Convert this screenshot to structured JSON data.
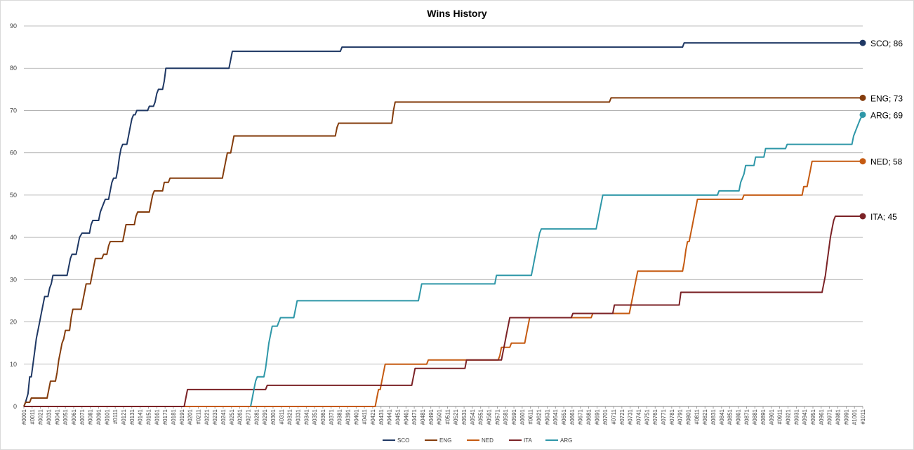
{
  "chart_data": {
    "type": "line",
    "title": "Wins History",
    "xlabel": "",
    "ylabel": "",
    "ylim": [
      0,
      90
    ],
    "yticks": [
      0,
      10,
      20,
      30,
      40,
      50,
      60,
      70,
      80,
      90
    ],
    "xlim": [
      1,
      1011
    ],
    "x_tick_labels": [
      "#0001",
      "#0011",
      "#0021",
      "#0031",
      "#0041",
      "#0051",
      "#0061",
      "#0071",
      "#0081",
      "#0091",
      "#0101",
      "#0111",
      "#0121",
      "#0131",
      "#0141",
      "#0151",
      "#0161",
      "#0171",
      "#0181",
      "#0191",
      "#0201",
      "#0211",
      "#0221",
      "#0231",
      "#0241",
      "#0251",
      "#0261",
      "#0271",
      "#0281",
      "#0291",
      "#0301",
      "#0311",
      "#0321",
      "#0331",
      "#0341",
      "#0351",
      "#0361",
      "#0371",
      "#0381",
      "#0391",
      "#0401",
      "#0411",
      "#0421",
      "#0431",
      "#0441",
      "#0451",
      "#0461",
      "#0471",
      "#0481",
      "#0491",
      "#0501",
      "#0511",
      "#0521",
      "#0531",
      "#0541",
      "#0551",
      "#0561",
      "#0571",
      "#0581",
      "#0591",
      "#0601",
      "#0611",
      "#0621",
      "#0631",
      "#0641",
      "#0651",
      "#0661",
      "#0671",
      "#0681",
      "#0691",
      "#0701",
      "#0711",
      "#0721",
      "#0731",
      "#0741",
      "#0751",
      "#0761",
      "#0771",
      "#0781",
      "#0791",
      "#0801",
      "#0811",
      "#0821",
      "#0831",
      "#0841",
      "#0851",
      "#0861",
      "#0871",
      "#0881",
      "#0891",
      "#0901",
      "#0911",
      "#0921",
      "#0931",
      "#0941",
      "#0951",
      "#0961",
      "#0971",
      "#0981",
      "#0991",
      "#1001",
      "#1011"
    ],
    "grid": true,
    "legend_position": "bottom",
    "series": [
      {
        "name": "SCO",
        "color": "#1f3864",
        "end_label": "SCO; 86",
        "points": [
          [
            1,
            0
          ],
          [
            3,
            1
          ],
          [
            6,
            3
          ],
          [
            8,
            7
          ],
          [
            10,
            7
          ],
          [
            12,
            10
          ],
          [
            14,
            13
          ],
          [
            16,
            16
          ],
          [
            18,
            18
          ],
          [
            20,
            20
          ],
          [
            22,
            22
          ],
          [
            24,
            24
          ],
          [
            26,
            26
          ],
          [
            30,
            26
          ],
          [
            32,
            28
          ],
          [
            34,
            29
          ],
          [
            36,
            31
          ],
          [
            53,
            31
          ],
          [
            55,
            33
          ],
          [
            57,
            35
          ],
          [
            59,
            36
          ],
          [
            64,
            36
          ],
          [
            66,
            38
          ],
          [
            68,
            40
          ],
          [
            71,
            41
          ],
          [
            80,
            41
          ],
          [
            82,
            43
          ],
          [
            84,
            44
          ],
          [
            91,
            44
          ],
          [
            93,
            46
          ],
          [
            95,
            47
          ],
          [
            97,
            48
          ],
          [
            99,
            49
          ],
          [
            103,
            49
          ],
          [
            105,
            51
          ],
          [
            107,
            53
          ],
          [
            109,
            54
          ],
          [
            112,
            54
          ],
          [
            114,
            56
          ],
          [
            116,
            59
          ],
          [
            118,
            61
          ],
          [
            120,
            62
          ],
          [
            125,
            62
          ],
          [
            127,
            64
          ],
          [
            129,
            66
          ],
          [
            131,
            68
          ],
          [
            133,
            69
          ],
          [
            135,
            69
          ],
          [
            137,
            70
          ],
          [
            150,
            70
          ],
          [
            152,
            71
          ],
          [
            157,
            71
          ],
          [
            159,
            72
          ],
          [
            161,
            74
          ],
          [
            163,
            75
          ],
          [
            168,
            75
          ],
          [
            170,
            77
          ],
          [
            172,
            80
          ],
          [
            248,
            80
          ],
          [
            250,
            82
          ],
          [
            252,
            84
          ],
          [
            382,
            84
          ],
          [
            384,
            85
          ],
          [
            794,
            85
          ],
          [
            796,
            86
          ],
          [
            1011,
            86
          ]
        ]
      },
      {
        "name": "ENG",
        "color": "#843c0c",
        "end_label": "ENG; 73",
        "points": [
          [
            1,
            0
          ],
          [
            3,
            1
          ],
          [
            8,
            1
          ],
          [
            10,
            2
          ],
          [
            29,
            2
          ],
          [
            31,
            4
          ],
          [
            33,
            6
          ],
          [
            39,
            6
          ],
          [
            41,
            8
          ],
          [
            43,
            11
          ],
          [
            45,
            13
          ],
          [
            47,
            15
          ],
          [
            49,
            16
          ],
          [
            51,
            18
          ],
          [
            56,
            18
          ],
          [
            58,
            21
          ],
          [
            60,
            23
          ],
          [
            70,
            23
          ],
          [
            72,
            25
          ],
          [
            74,
            27
          ],
          [
            76,
            29
          ],
          [
            81,
            29
          ],
          [
            83,
            31
          ],
          [
            85,
            33
          ],
          [
            87,
            35
          ],
          [
            95,
            35
          ],
          [
            97,
            36
          ],
          [
            101,
            36
          ],
          [
            103,
            38
          ],
          [
            105,
            39
          ],
          [
            120,
            39
          ],
          [
            122,
            41
          ],
          [
            124,
            43
          ],
          [
            134,
            43
          ],
          [
            136,
            45
          ],
          [
            138,
            46
          ],
          [
            152,
            46
          ],
          [
            154,
            48
          ],
          [
            156,
            50
          ],
          [
            158,
            51
          ],
          [
            168,
            51
          ],
          [
            170,
            53
          ],
          [
            175,
            53
          ],
          [
            177,
            54
          ],
          [
            240,
            54
          ],
          [
            242,
            56
          ],
          [
            244,
            58
          ],
          [
            246,
            60
          ],
          [
            250,
            60
          ],
          [
            252,
            62
          ],
          [
            254,
            64
          ],
          [
            376,
            64
          ],
          [
            378,
            66
          ],
          [
            380,
            67
          ],
          [
            444,
            67
          ],
          [
            446,
            70
          ],
          [
            448,
            72
          ],
          [
            706,
            72
          ],
          [
            708,
            73
          ],
          [
            1011,
            73
          ]
        ]
      },
      {
        "name": "NED",
        "color": "#c55a11",
        "end_label": "NED; 58",
        "points": [
          [
            1,
            0
          ],
          [
            424,
            0
          ],
          [
            426,
            2
          ],
          [
            428,
            4
          ],
          [
            430,
            4
          ],
          [
            432,
            6
          ],
          [
            434,
            8
          ],
          [
            436,
            10
          ],
          [
            486,
            10
          ],
          [
            488,
            11
          ],
          [
            572,
            11
          ],
          [
            574,
            12
          ],
          [
            576,
            14
          ],
          [
            586,
            14
          ],
          [
            588,
            15
          ],
          [
            604,
            15
          ],
          [
            606,
            17
          ],
          [
            608,
            19
          ],
          [
            610,
            21
          ],
          [
            684,
            21
          ],
          [
            686,
            22
          ],
          [
            730,
            22
          ],
          [
            732,
            24
          ],
          [
            734,
            26
          ],
          [
            736,
            28
          ],
          [
            738,
            30
          ],
          [
            740,
            32
          ],
          [
            794,
            32
          ],
          [
            796,
            34
          ],
          [
            798,
            37
          ],
          [
            800,
            39
          ],
          [
            802,
            39
          ],
          [
            804,
            41
          ],
          [
            806,
            43
          ],
          [
            808,
            45
          ],
          [
            810,
            47
          ],
          [
            812,
            49
          ],
          [
            866,
            49
          ],
          [
            868,
            50
          ],
          [
            938,
            50
          ],
          [
            940,
            52
          ],
          [
            944,
            52
          ],
          [
            946,
            54
          ],
          [
            948,
            56
          ],
          [
            950,
            58
          ],
          [
            1011,
            58
          ]
        ]
      },
      {
        "name": "ITA",
        "color": "#7b2226",
        "end_label": "ITA; 45",
        "points": [
          [
            1,
            0
          ],
          [
            194,
            0
          ],
          [
            196,
            2
          ],
          [
            198,
            4
          ],
          [
            292,
            4
          ],
          [
            294,
            5
          ],
          [
            468,
            5
          ],
          [
            470,
            7
          ],
          [
            472,
            9
          ],
          [
            532,
            9
          ],
          [
            534,
            11
          ],
          [
            576,
            11
          ],
          [
            578,
            13
          ],
          [
            580,
            15
          ],
          [
            582,
            17
          ],
          [
            584,
            19
          ],
          [
            586,
            21
          ],
          [
            660,
            21
          ],
          [
            662,
            22
          ],
          [
            710,
            22
          ],
          [
            712,
            24
          ],
          [
            790,
            24
          ],
          [
            792,
            27
          ],
          [
            962,
            27
          ],
          [
            964,
            29
          ],
          [
            966,
            31
          ],
          [
            968,
            34
          ],
          [
            970,
            37
          ],
          [
            972,
            40
          ],
          [
            974,
            42
          ],
          [
            976,
            44
          ],
          [
            978,
            45
          ],
          [
            1011,
            45
          ]
        ]
      },
      {
        "name": "ARG",
        "color": "#2e97a8",
        "end_label": "ARG; 69",
        "points": [
          [
            274,
            0
          ],
          [
            276,
            2
          ],
          [
            278,
            4
          ],
          [
            280,
            6
          ],
          [
            282,
            7
          ],
          [
            290,
            7
          ],
          [
            292,
            9
          ],
          [
            294,
            12
          ],
          [
            296,
            15
          ],
          [
            298,
            17
          ],
          [
            300,
            19
          ],
          [
            306,
            19
          ],
          [
            308,
            20
          ],
          [
            310,
            21
          ],
          [
            326,
            21
          ],
          [
            328,
            23
          ],
          [
            330,
            25
          ],
          [
            476,
            25
          ],
          [
            478,
            27
          ],
          [
            480,
            29
          ],
          [
            568,
            29
          ],
          [
            570,
            31
          ],
          [
            612,
            31
          ],
          [
            614,
            33
          ],
          [
            616,
            35
          ],
          [
            618,
            37
          ],
          [
            620,
            39
          ],
          [
            622,
            41
          ],
          [
            624,
            42
          ],
          [
            690,
            42
          ],
          [
            692,
            44
          ],
          [
            694,
            46
          ],
          [
            696,
            48
          ],
          [
            698,
            50
          ],
          [
            836,
            50
          ],
          [
            838,
            51
          ],
          [
            862,
            51
          ],
          [
            864,
            53
          ],
          [
            868,
            55
          ],
          [
            870,
            57
          ],
          [
            880,
            57
          ],
          [
            882,
            59
          ],
          [
            892,
            59
          ],
          [
            894,
            61
          ],
          [
            918,
            61
          ],
          [
            920,
            62
          ],
          [
            998,
            62
          ],
          [
            1000,
            64
          ],
          [
            1004,
            66
          ],
          [
            1008,
            68
          ],
          [
            1011,
            69
          ]
        ]
      }
    ],
    "legend": [
      "SCO",
      "ENG",
      "NED",
      "ITA",
      "ARG"
    ]
  }
}
